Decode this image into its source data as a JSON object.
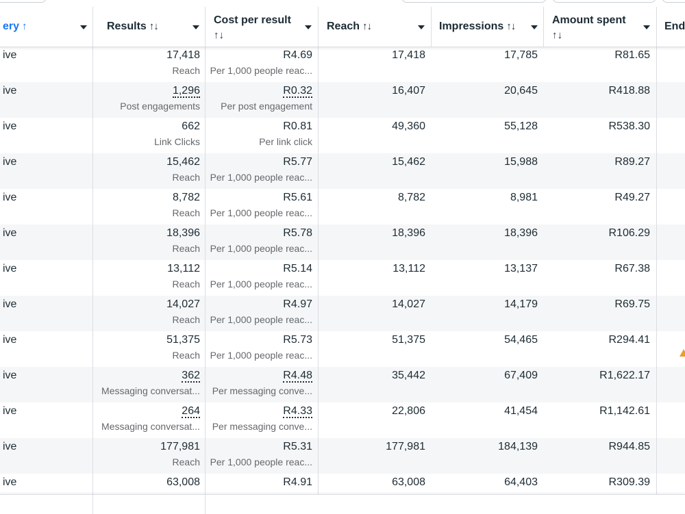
{
  "columns": {
    "delivery": {
      "label": "ery",
      "sort_icon": "↑"
    },
    "results": {
      "label": "Results",
      "sort_icon": "↑↓"
    },
    "cost_per_result": {
      "label": "Cost per result",
      "sort_icon": "↑↓"
    },
    "reach": {
      "label": "Reach",
      "sort_icon": "↑↓"
    },
    "impressions": {
      "label": "Impressions",
      "sort_icon": "↑↓"
    },
    "amount_spent": {
      "label": "Amount spent",
      "sort_icon": "↑↓"
    },
    "ends": {
      "label": "End"
    }
  },
  "rows": [
    {
      "delivery": "ive",
      "results": "17,418",
      "results_type": "Reach",
      "cost": "R4.69",
      "cost_type": "Per 1,000 people reac...",
      "reach": "17,418",
      "impressions": "17,785",
      "spent": "R81.65"
    },
    {
      "delivery": "ive",
      "results": "1,296",
      "results_type": "Post engagements",
      "cost": "R0.32",
      "cost_type": "Per post engagement",
      "reach": "16,407",
      "impressions": "20,645",
      "spent": "R418.88"
    },
    {
      "delivery": "ive",
      "results": "662",
      "results_type": "Link Clicks",
      "cost": "R0.81",
      "cost_type": "Per link click",
      "reach": "49,360",
      "impressions": "55,128",
      "spent": "R538.30"
    },
    {
      "delivery": "ive",
      "results": "15,462",
      "results_type": "Reach",
      "cost": "R5.77",
      "cost_type": "Per 1,000 people reac...",
      "reach": "15,462",
      "impressions": "15,988",
      "spent": "R89.27"
    },
    {
      "delivery": "ive",
      "results": "8,782",
      "results_type": "Reach",
      "cost": "R5.61",
      "cost_type": "Per 1,000 people reac...",
      "reach": "8,782",
      "impressions": "8,981",
      "spent": "R49.27"
    },
    {
      "delivery": "ive",
      "results": "18,396",
      "results_type": "Reach",
      "cost": "R5.78",
      "cost_type": "Per 1,000 people reac...",
      "reach": "18,396",
      "impressions": "18,396",
      "spent": "R106.29"
    },
    {
      "delivery": "ive",
      "results": "13,112",
      "results_type": "Reach",
      "cost": "R5.14",
      "cost_type": "Per 1,000 people reac...",
      "reach": "13,112",
      "impressions": "13,137",
      "spent": "R67.38"
    },
    {
      "delivery": "ive",
      "results": "14,027",
      "results_type": "Reach",
      "cost": "R4.97",
      "cost_type": "Per 1,000 people reac...",
      "reach": "14,027",
      "impressions": "14,179",
      "spent": "R69.75"
    },
    {
      "delivery": "ive",
      "results": "51,375",
      "results_type": "Reach",
      "cost": "R5.73",
      "cost_type": "Per 1,000 people reac...",
      "reach": "51,375",
      "impressions": "54,465",
      "spent": "R294.41"
    },
    {
      "delivery": "ive",
      "results": "362",
      "results_type": "Messaging conversat...",
      "cost": "R4.48",
      "cost_type": "Per messaging conve...",
      "reach": "35,442",
      "impressions": "67,409",
      "spent": "R1,622.17"
    },
    {
      "delivery": "ive",
      "results": "264",
      "results_type": "Messaging conversat...",
      "cost": "R4.33",
      "cost_type": "Per messaging conve...",
      "reach": "22,806",
      "impressions": "41,454",
      "spent": "R1,142.61"
    },
    {
      "delivery": "ive",
      "results": "177,981",
      "results_type": "Reach",
      "cost": "R5.31",
      "cost_type": "Per 1,000 people reac...",
      "reach": "177,981",
      "impressions": "184,139",
      "spent": "R944.85"
    },
    {
      "delivery": "ive",
      "results": "63,008",
      "results_type": "Reach",
      "cost": "R4.91",
      "cost_type": "Per 1,000 people reac...",
      "reach": "63,008",
      "impressions": "64,403",
      "spent": "R309.39"
    }
  ],
  "dotted_rows": [
    1,
    9,
    10
  ],
  "warning_row": 8,
  "colors": {
    "accent": "#1877f2",
    "text": "#1c2b33",
    "muted": "#65676b",
    "row_alt": "#f5f6f7",
    "divider": "#dadde1",
    "warning": "#e89f2b"
  }
}
